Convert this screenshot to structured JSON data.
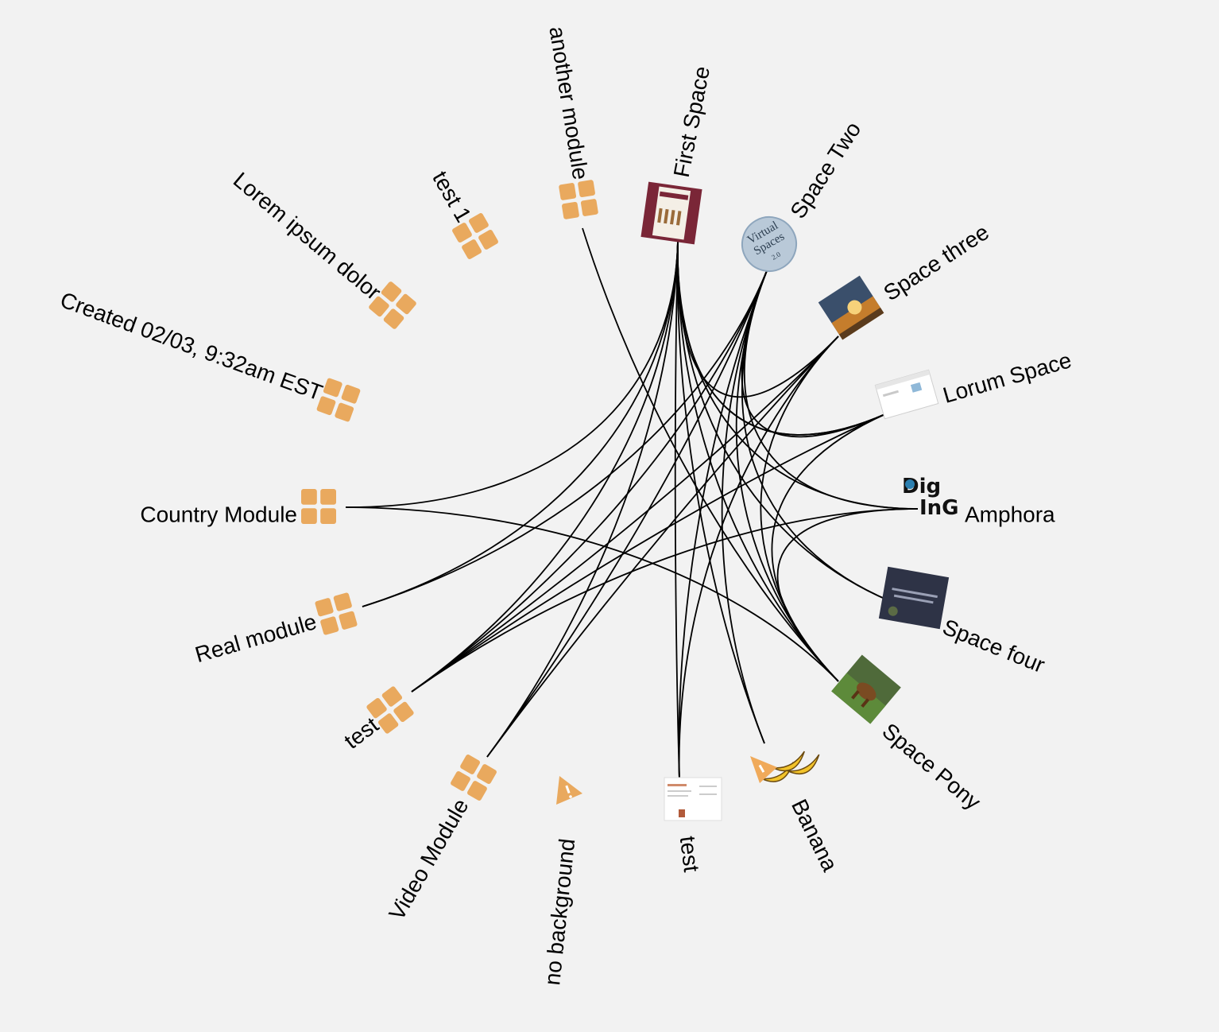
{
  "diagram": {
    "colors": {
      "background": "#f2f2f2",
      "module_icon": "#e9a95e",
      "edge": "#000000"
    },
    "nodes": [
      {
        "id": "another-module",
        "label": "another module",
        "kind": "module",
        "icon": "module-grid-icon"
      },
      {
        "id": "first-space",
        "label": "First Space",
        "kind": "space",
        "icon": "first-space-thumbnail"
      },
      {
        "id": "space-two",
        "label": "Space Two",
        "kind": "space",
        "icon": "virtual-spaces-logo-icon",
        "icon_text": [
          "Virtual",
          "Spaces",
          "2.0"
        ]
      },
      {
        "id": "space-three",
        "label": "Space three",
        "kind": "space",
        "icon": "sunset-thumbnail"
      },
      {
        "id": "lorum-space",
        "label": "Lorum Space",
        "kind": "space",
        "icon": "web-page-thumbnail"
      },
      {
        "id": "amphora",
        "label": "Amphora",
        "kind": "space",
        "icon": "digging-logo-icon",
        "icon_text": [
          "Dig",
          "InG"
        ]
      },
      {
        "id": "space-four",
        "label": "Space four",
        "kind": "space",
        "icon": "dark-slide-thumbnail"
      },
      {
        "id": "space-pony",
        "label": "Space Pony",
        "kind": "space",
        "icon": "pony-photo-thumbnail"
      },
      {
        "id": "banana",
        "label": "Banana",
        "kind": "space",
        "icon": "banana-icon"
      },
      {
        "id": "test-space",
        "label": "test",
        "kind": "space",
        "icon": "document-thumbnail"
      },
      {
        "id": "no-background",
        "label": "no background",
        "kind": "space",
        "icon": "warning-icon"
      },
      {
        "id": "video-module",
        "label": "Video Module",
        "kind": "module",
        "icon": "module-grid-icon"
      },
      {
        "id": "test-module",
        "label": "test",
        "kind": "module",
        "icon": "module-grid-icon"
      },
      {
        "id": "real-module",
        "label": "Real module",
        "kind": "module",
        "icon": "module-grid-icon"
      },
      {
        "id": "country-module",
        "label": "Country Module",
        "kind": "module",
        "icon": "module-grid-icon"
      },
      {
        "id": "created-module",
        "label": "Created 02/03, 9:32am EST",
        "kind": "module",
        "icon": "module-grid-icon"
      },
      {
        "id": "lorem-module",
        "label": "Lorem ipsum dolor",
        "kind": "module",
        "icon": "module-grid-icon"
      },
      {
        "id": "test1-module",
        "label": "test 1",
        "kind": "module",
        "icon": "module-grid-icon"
      }
    ],
    "edges": [
      [
        "another-module",
        "space-pony"
      ],
      [
        "first-space",
        "country-module"
      ],
      [
        "first-space",
        "real-module"
      ],
      [
        "first-space",
        "test-module"
      ],
      [
        "first-space",
        "video-module"
      ],
      [
        "first-space",
        "test-space"
      ],
      [
        "first-space",
        "banana"
      ],
      [
        "first-space",
        "space-pony"
      ],
      [
        "first-space",
        "space-four"
      ],
      [
        "first-space",
        "amphora"
      ],
      [
        "first-space",
        "lorum-space"
      ],
      [
        "space-two",
        "real-module"
      ],
      [
        "space-two",
        "test-module"
      ],
      [
        "space-two",
        "video-module"
      ],
      [
        "space-two",
        "test-space"
      ],
      [
        "space-two",
        "banana"
      ],
      [
        "space-two",
        "space-pony"
      ],
      [
        "space-two",
        "space-four"
      ],
      [
        "space-two",
        "lorum-space"
      ],
      [
        "space-three",
        "test-module"
      ],
      [
        "space-three",
        "video-module"
      ],
      [
        "space-three",
        "test-space"
      ],
      [
        "space-three",
        "space-pony"
      ],
      [
        "space-three",
        "first-space"
      ],
      [
        "lorum-space",
        "test-module"
      ],
      [
        "lorum-space",
        "space-pony"
      ],
      [
        "lorum-space",
        "first-space"
      ],
      [
        "amphora",
        "test-module"
      ],
      [
        "amphora",
        "space-pony"
      ],
      [
        "amphora",
        "space-two"
      ],
      [
        "country-module",
        "space-pony"
      ]
    ]
  }
}
